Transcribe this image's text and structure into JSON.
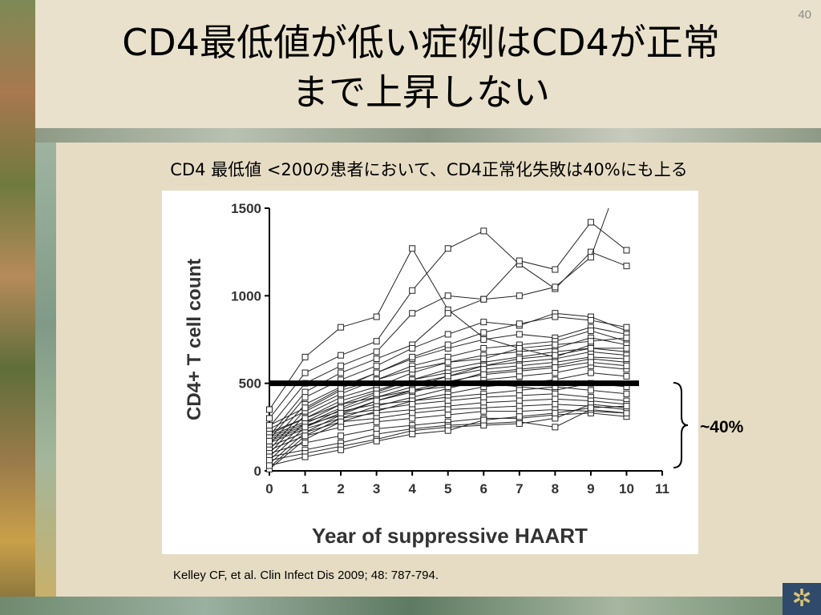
{
  "slide": {
    "number": "40",
    "title_line1": "CD4最低値が低い症例はCD4が正常",
    "title_line2": "まで上昇しない",
    "subtitle": "CD4 最低値 <200の患者において、CD4正常化失敗は40%にも上る",
    "annotation": "~40%",
    "citation": "Kelley CF, et al. Clin Infect Dis 2009; 48: 787-794.",
    "gear_icon": "gear-icon"
  },
  "chart_data": {
    "type": "line",
    "xlabel": "Year of suppressive HAART",
    "ylabel": "CD4+ T cell count",
    "xlim": [
      0,
      11
    ],
    "ylim": [
      0,
      1500
    ],
    "x_ticks": [
      0,
      1,
      2,
      3,
      4,
      5,
      6,
      7,
      8,
      9,
      10,
      11
    ],
    "y_ticks": [
      0,
      500,
      1000,
      1500
    ],
    "threshold": 500,
    "marker": "open-square",
    "series": [
      {
        "values": [
          [
            0,
            350
          ],
          [
            1,
            650
          ],
          [
            2,
            820
          ],
          [
            3,
            880
          ],
          [
            4,
            1270
          ],
          [
            5,
            920
          ],
          [
            6,
            760
          ],
          [
            7,
            700
          ],
          [
            8,
            650
          ],
          [
            9,
            720
          ]
        ]
      },
      {
        "values": [
          [
            0,
            300
          ],
          [
            1,
            560
          ],
          [
            2,
            660
          ],
          [
            3,
            740
          ],
          [
            4,
            1030
          ],
          [
            5,
            1270
          ],
          [
            6,
            1370
          ],
          [
            7,
            1180
          ],
          [
            8,
            1040
          ],
          [
            9,
            1250
          ],
          [
            10,
            1170
          ]
        ]
      },
      {
        "values": [
          [
            0,
            250
          ],
          [
            1,
            500
          ],
          [
            2,
            600
          ],
          [
            3,
            680
          ],
          [
            4,
            900
          ],
          [
            5,
            1000
          ],
          [
            6,
            980
          ],
          [
            7,
            1200
          ],
          [
            8,
            1150
          ],
          [
            9,
            1420
          ],
          [
            10,
            1260
          ]
        ]
      },
      {
        "values": [
          [
            0,
            200
          ],
          [
            1,
            450
          ],
          [
            2,
            560
          ],
          [
            3,
            640
          ],
          [
            4,
            720
          ],
          [
            5,
            900
          ],
          [
            6,
            980
          ],
          [
            7,
            1000
          ],
          [
            8,
            1050
          ],
          [
            9,
            1220
          ],
          [
            9.5,
            1500
          ]
        ]
      },
      {
        "values": [
          [
            0,
            180
          ],
          [
            1,
            420
          ],
          [
            2,
            520
          ],
          [
            3,
            600
          ],
          [
            4,
            700
          ],
          [
            5,
            780
          ],
          [
            6,
            850
          ],
          [
            7,
            830
          ],
          [
            8,
            900
          ],
          [
            9,
            880
          ],
          [
            10,
            800
          ]
        ]
      },
      {
        "values": [
          [
            0,
            150
          ],
          [
            1,
            380
          ],
          [
            2,
            480
          ],
          [
            3,
            560
          ],
          [
            4,
            640
          ],
          [
            5,
            700
          ],
          [
            6,
            750
          ],
          [
            7,
            780
          ],
          [
            8,
            760
          ],
          [
            9,
            820
          ],
          [
            10,
            780
          ]
        ]
      },
      {
        "values": [
          [
            0,
            120
          ],
          [
            1,
            350
          ],
          [
            2,
            460
          ],
          [
            3,
            520
          ],
          [
            4,
            600
          ],
          [
            5,
            650
          ],
          [
            6,
            700
          ],
          [
            7,
            720
          ],
          [
            8,
            740
          ],
          [
            9,
            800
          ],
          [
            10,
            740
          ]
        ]
      },
      {
        "values": [
          [
            0,
            100
          ],
          [
            1,
            320
          ],
          [
            2,
            420
          ],
          [
            3,
            480
          ],
          [
            4,
            560
          ],
          [
            5,
            620
          ],
          [
            6,
            660
          ],
          [
            7,
            680
          ],
          [
            8,
            700
          ],
          [
            9,
            760
          ],
          [
            10,
            720
          ]
        ]
      },
      {
        "values": [
          [
            0,
            80
          ],
          [
            1,
            280
          ],
          [
            2,
            380
          ],
          [
            3,
            450
          ],
          [
            4,
            520
          ],
          [
            5,
            580
          ],
          [
            6,
            620
          ],
          [
            7,
            650
          ],
          [
            8,
            680
          ],
          [
            9,
            700
          ],
          [
            10,
            680
          ]
        ]
      },
      {
        "values": [
          [
            0,
            60
          ],
          [
            1,
            250
          ],
          [
            2,
            350
          ],
          [
            3,
            420
          ],
          [
            4,
            480
          ],
          [
            5,
            540
          ],
          [
            6,
            600
          ],
          [
            7,
            620
          ],
          [
            8,
            640
          ],
          [
            9,
            680
          ],
          [
            10,
            660
          ]
        ]
      },
      {
        "values": [
          [
            0,
            40
          ],
          [
            1,
            220
          ],
          [
            2,
            320
          ],
          [
            3,
            400
          ],
          [
            4,
            450
          ],
          [
            5,
            500
          ],
          [
            6,
            560
          ],
          [
            7,
            580
          ],
          [
            8,
            600
          ],
          [
            9,
            640
          ],
          [
            10,
            620
          ]
        ]
      },
      {
        "values": [
          [
            0,
            20
          ],
          [
            1,
            200
          ],
          [
            2,
            300
          ],
          [
            3,
            370
          ],
          [
            4,
            420
          ],
          [
            5,
            470
          ],
          [
            6,
            520
          ],
          [
            7,
            540
          ],
          [
            8,
            560
          ],
          [
            9,
            600
          ],
          [
            10,
            580
          ]
        ]
      },
      {
        "values": [
          [
            0,
            10
          ],
          [
            1,
            180
          ],
          [
            2,
            280
          ],
          [
            3,
            340
          ],
          [
            4,
            400
          ],
          [
            5,
            440
          ],
          [
            6,
            480
          ],
          [
            7,
            500
          ],
          [
            8,
            520
          ],
          [
            9,
            560
          ],
          [
            10,
            540
          ]
        ]
      },
      {
        "values": [
          [
            0,
            220
          ],
          [
            1,
            300
          ],
          [
            2,
            380
          ],
          [
            3,
            420
          ],
          [
            4,
            460
          ],
          [
            5,
            480
          ],
          [
            6,
            500
          ],
          [
            7,
            480
          ],
          [
            8,
            460
          ],
          [
            9,
            500
          ],
          [
            10,
            480
          ]
        ]
      },
      {
        "values": [
          [
            0,
            200
          ],
          [
            1,
            280
          ],
          [
            2,
            340
          ],
          [
            3,
            380
          ],
          [
            4,
            400
          ],
          [
            5,
            420
          ],
          [
            6,
            440
          ],
          [
            7,
            460
          ],
          [
            8,
            480
          ],
          [
            9,
            460
          ],
          [
            10,
            440
          ]
        ]
      },
      {
        "values": [
          [
            0,
            180
          ],
          [
            1,
            260
          ],
          [
            2,
            320
          ],
          [
            3,
            350
          ],
          [
            4,
            380
          ],
          [
            5,
            400
          ],
          [
            6,
            420
          ],
          [
            7,
            430
          ],
          [
            8,
            440
          ],
          [
            9,
            420
          ],
          [
            10,
            400
          ]
        ]
      },
      {
        "values": [
          [
            0,
            160
          ],
          [
            1,
            240
          ],
          [
            2,
            300
          ],
          [
            3,
            330
          ],
          [
            4,
            350
          ],
          [
            5,
            370
          ],
          [
            6,
            390
          ],
          [
            7,
            400
          ],
          [
            8,
            410
          ],
          [
            9,
            400
          ],
          [
            10,
            380
          ]
        ]
      },
      {
        "values": [
          [
            0,
            140
          ],
          [
            1,
            220
          ],
          [
            2,
            280
          ],
          [
            3,
            300
          ],
          [
            4,
            330
          ],
          [
            5,
            350
          ],
          [
            6,
            360
          ],
          [
            7,
            370
          ],
          [
            8,
            380
          ],
          [
            9,
            370
          ],
          [
            10,
            350
          ]
        ]
      },
      {
        "values": [
          [
            0,
            120
          ],
          [
            1,
            200
          ],
          [
            2,
            250
          ],
          [
            3,
            280
          ],
          [
            4,
            300
          ],
          [
            5,
            320
          ],
          [
            6,
            340
          ],
          [
            7,
            340
          ],
          [
            8,
            350
          ],
          [
            9,
            340
          ],
          [
            10,
            330
          ]
        ]
      },
      {
        "values": [
          [
            0,
            100
          ],
          [
            1,
            160
          ],
          [
            2,
            200
          ],
          [
            3,
            240
          ],
          [
            4,
            260
          ],
          [
            5,
            280
          ],
          [
            6,
            300
          ],
          [
            7,
            300
          ],
          [
            8,
            320
          ],
          [
            9,
            330
          ],
          [
            10,
            310
          ]
        ]
      },
      {
        "values": [
          [
            0,
            80
          ],
          [
            1,
            120
          ],
          [
            2,
            160
          ],
          [
            3,
            210
          ],
          [
            4,
            240
          ],
          [
            5,
            260
          ],
          [
            6,
            270
          ],
          [
            7,
            280
          ],
          [
            8,
            250
          ],
          [
            9,
            350
          ],
          [
            10,
            330
          ]
        ]
      },
      {
        "values": [
          [
            0,
            60
          ],
          [
            1,
            100
          ],
          [
            2,
            140
          ],
          [
            3,
            180
          ],
          [
            4,
            230
          ],
          [
            5,
            250
          ],
          [
            6,
            260
          ],
          [
            7,
            270
          ],
          [
            8,
            300
          ],
          [
            9,
            380
          ],
          [
            10,
            360
          ]
        ]
      },
      {
        "values": [
          [
            0,
            30
          ],
          [
            1,
            80
          ],
          [
            2,
            120
          ],
          [
            3,
            170
          ],
          [
            4,
            210
          ],
          [
            5,
            230
          ],
          [
            6,
            290
          ],
          [
            7,
            310
          ],
          [
            8,
            330
          ],
          [
            9,
            360
          ],
          [
            10,
            370
          ]
        ]
      },
      {
        "values": [
          [
            0,
            240
          ],
          [
            1,
            340
          ],
          [
            2,
            440
          ],
          [
            3,
            520
          ],
          [
            4,
            580
          ],
          [
            5,
            620
          ],
          [
            6,
            640
          ],
          [
            7,
            700
          ],
          [
            8,
            720
          ],
          [
            9,
            740
          ],
          [
            10,
            760
          ]
        ]
      },
      {
        "values": [
          [
            0,
            260
          ],
          [
            1,
            360
          ],
          [
            2,
            470
          ],
          [
            3,
            560
          ],
          [
            4,
            650
          ],
          [
            5,
            720
          ],
          [
            6,
            790
          ],
          [
            7,
            840
          ],
          [
            8,
            880
          ],
          [
            9,
            860
          ],
          [
            10,
            820
          ]
        ]
      },
      {
        "values": [
          [
            0,
            210
          ],
          [
            1,
            300
          ],
          [
            2,
            400
          ],
          [
            3,
            460
          ],
          [
            4,
            520
          ],
          [
            5,
            560
          ],
          [
            6,
            600
          ],
          [
            7,
            640
          ],
          [
            8,
            660
          ],
          [
            9,
            700
          ],
          [
            10,
            700
          ]
        ]
      },
      {
        "values": [
          [
            0,
            190
          ],
          [
            1,
            270
          ],
          [
            2,
            360
          ],
          [
            3,
            440
          ],
          [
            4,
            500
          ],
          [
            5,
            540
          ],
          [
            6,
            580
          ],
          [
            7,
            600
          ],
          [
            8,
            620
          ],
          [
            9,
            650
          ],
          [
            10,
            640
          ]
        ]
      },
      {
        "values": [
          [
            0,
            170
          ],
          [
            1,
            250
          ],
          [
            2,
            330
          ],
          [
            3,
            400
          ],
          [
            4,
            460
          ],
          [
            5,
            510
          ],
          [
            6,
            550
          ],
          [
            7,
            570
          ],
          [
            8,
            590
          ],
          [
            9,
            620
          ],
          [
            10,
            600
          ]
        ]
      }
    ]
  }
}
